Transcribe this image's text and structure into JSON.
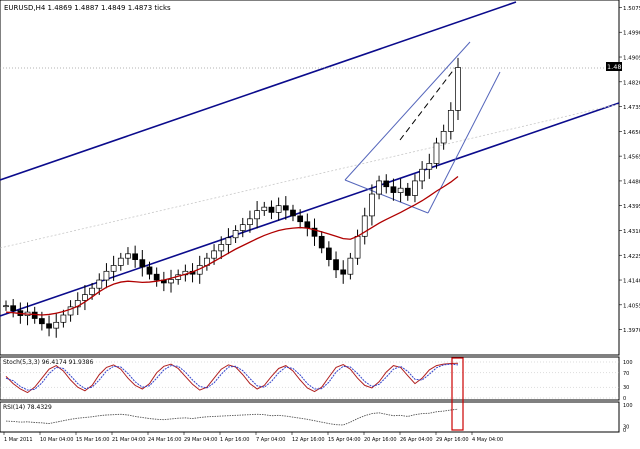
{
  "chart_data": {
    "type": "candlestick",
    "symbol_header": "EURUSD,H4  1.4869 1.4887 1.4849 1.4873 ticks",
    "price_axis": {
      "ylim": [
        1.39,
        1.508
      ],
      "ticks": [
        "1.5075",
        "1.4990",
        "1.4905",
        "1.4820",
        "1.4735",
        "1.4650",
        "1.4565",
        "1.4480",
        "1.4395",
        "1.4310",
        "1.4225",
        "1.4140",
        "1.4055",
        "1.3970"
      ],
      "current_price": "1.4869",
      "current_price_color": "#000000"
    },
    "time_axis": {
      "ticks": [
        "1 Mar 2011",
        "10 Mar 04:00",
        "15 Mar 16:00",
        "21 Mar 04:00",
        "24 Mar 16:00",
        "29 Mar 04:00",
        "1 Apr 16:00",
        "7 Apr 04:00",
        "12 Apr 16:00",
        "15 Apr 04:00",
        "20 Apr 16:00",
        "26 Apr 04:00",
        "29 Apr 16:00",
        "4 May 04:00"
      ]
    },
    "series": [
      {
        "name": "price",
        "values": [
          1.4052,
          1.4035,
          1.4018,
          1.403,
          1.4008,
          1.399,
          1.3975,
          1.3995,
          1.402,
          1.4048,
          1.407,
          1.409,
          1.4112,
          1.414,
          1.417,
          1.419,
          1.4215,
          1.423,
          1.421,
          1.4185,
          1.416,
          1.414,
          1.413,
          1.4142,
          1.4158,
          1.417,
          1.416,
          1.419,
          1.4215,
          1.424,
          1.4262,
          1.4285,
          1.431,
          1.433,
          1.435,
          1.4378,
          1.439,
          1.4372,
          1.4395,
          1.438,
          1.436,
          1.434,
          1.4318,
          1.429,
          1.425,
          1.421,
          1.4175,
          1.416,
          1.4215,
          1.429,
          1.436,
          1.4435,
          1.448,
          1.446,
          1.444,
          1.4455,
          1.443,
          1.448,
          1.452,
          1.454,
          1.461,
          1.465,
          1.4722,
          1.4869
        ]
      },
      {
        "name": "moving-average",
        "values": [
          1.403,
          1.4028,
          1.4025,
          1.4023,
          1.4022,
          1.402,
          1.4022,
          1.4026,
          1.4032,
          1.404,
          1.405,
          1.4065,
          1.4082,
          1.41,
          1.4115,
          1.4126,
          1.4133,
          1.4136,
          1.4134,
          1.4132,
          1.4133,
          1.4136,
          1.414,
          1.4146,
          1.4153,
          1.416,
          1.4168,
          1.4178,
          1.419,
          1.4204,
          1.4218,
          1.4232,
          1.4246,
          1.4258,
          1.427,
          1.4282,
          1.4293,
          1.4302,
          1.431,
          1.4315,
          1.4318,
          1.432,
          1.4318,
          1.4312,
          1.4305,
          1.4298,
          1.429,
          1.4282,
          1.428,
          1.429,
          1.4305,
          1.432,
          1.4335,
          1.4348,
          1.436,
          1.4372,
          1.4385,
          1.4398,
          1.4412,
          1.4428,
          1.4445,
          1.446,
          1.4476,
          1.4495
        ]
      }
    ],
    "stochastic": {
      "label": "Stoch(5,3,3) 96.4174 91.9386",
      "ylim": [
        0,
        100
      ],
      "ticks": [
        "100",
        "70",
        "30",
        "0"
      ],
      "k": [
        60,
        40,
        25,
        15,
        30,
        55,
        80,
        90,
        75,
        50,
        30,
        20,
        35,
        65,
        85,
        92,
        80,
        55,
        35,
        25,
        40,
        70,
        88,
        94,
        82,
        60,
        38,
        22,
        30,
        55,
        80,
        92,
        86,
        65,
        40,
        25,
        35,
        60,
        82,
        90,
        75,
        50,
        28,
        18,
        30,
        58,
        85,
        93,
        80,
        55,
        35,
        28,
        45,
        72,
        90,
        85,
        62,
        40,
        55,
        78,
        90,
        94,
        96,
        96.4
      ],
      "d": [
        55,
        48,
        32,
        22,
        24,
        42,
        68,
        85,
        82,
        62,
        40,
        26,
        30,
        50,
        75,
        88,
        86,
        68,
        45,
        30,
        34,
        55,
        78,
        90,
        88,
        72,
        50,
        32,
        28,
        42,
        66,
        86,
        88,
        76,
        54,
        34,
        30,
        46,
        70,
        86,
        82,
        64,
        40,
        25,
        26,
        44,
        72,
        88,
        86,
        68,
        46,
        32,
        38,
        58,
        80,
        88,
        74,
        52,
        50,
        66,
        84,
        92,
        94,
        91.9
      ]
    },
    "rsi": {
      "label": "RSI(14) 78.4329",
      "ylim": [
        0,
        100
      ],
      "ticks": [
        "100",
        "30",
        "0"
      ],
      "values": [
        45,
        44,
        42,
        43,
        41,
        40,
        38,
        42,
        46,
        50,
        53,
        55,
        57,
        60,
        62,
        63,
        64,
        62,
        58,
        55,
        52,
        50,
        49,
        51,
        53,
        54,
        52,
        55,
        57,
        58,
        59,
        60,
        61,
        62,
        63,
        64,
        63,
        60,
        61,
        59,
        56,
        53,
        50,
        46,
        42,
        38,
        35,
        34,
        42,
        52,
        60,
        66,
        68,
        64,
        60,
        61,
        58,
        63,
        66,
        67,
        71,
        73,
        76,
        78.4
      ]
    },
    "annotations": {
      "highlight_box_color": "#cc0000"
    }
  }
}
